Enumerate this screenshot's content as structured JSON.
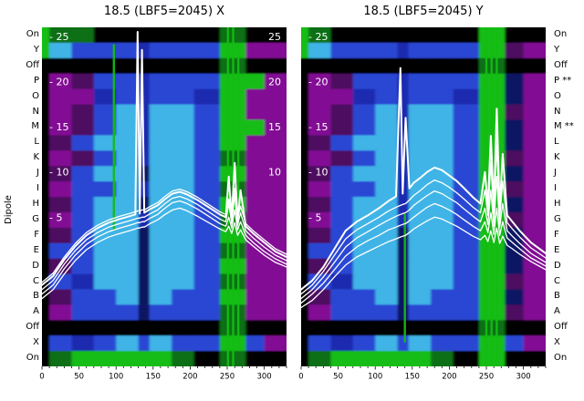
{
  "figure": {
    "left_title": "18.5 (LBF5=2045) X",
    "right_title": "18.5 (LBF5=2045) Y",
    "y_axis_label": "Dipole",
    "left_row_labels": [
      "On",
      "Y",
      "Off",
      "P",
      "O",
      "N",
      "M",
      "L",
      "K",
      "J",
      "I",
      "H",
      "G",
      "F",
      "E",
      "D",
      "C",
      "B",
      "A",
      "Off",
      "X",
      "On"
    ],
    "right_row_labels": [
      "On",
      "Y",
      "Off",
      "P **",
      "O",
      "N",
      "M **",
      "L",
      "K",
      "J",
      "I",
      "H",
      "G",
      "F",
      "E",
      "D",
      "C",
      "B",
      "A",
      "Off",
      "X",
      "On"
    ]
  },
  "chart_data": [
    {
      "type": "heatmap",
      "title": "18.5 (LBF5=2045) X",
      "x_range": [
        0,
        330
      ],
      "x_ticks": [
        0,
        50,
        100,
        150,
        200,
        250,
        300
      ],
      "rows": [
        "On",
        "Y",
        "Off",
        "P",
        "O",
        "N",
        "M",
        "L",
        "K",
        "J",
        "I",
        "H",
        "G",
        "F",
        "E",
        "D",
        "C",
        "B",
        "A",
        "Off",
        "X",
        "On"
      ],
      "colorscale_description": "black=off, purple=low, blue/cyan=mid, bright green=high",
      "palette": {
        "K": "#060606",
        "G": "#12bd12",
        "g": "#0a7014",
        "P": "#820c94",
        "p": "#4e0960",
        "B": "#2b46d4",
        "b": "#1c2bb0",
        "C": "#3fb4e6",
        "N": "#0e1464"
      },
      "col_edges": [
        0,
        10,
        40,
        70,
        100,
        130,
        145,
        175,
        205,
        240,
        275,
        300,
        330
      ],
      "grid": [
        "GggKKKKKKgKK",
        "GCBBBbBBBGPP",
        "KKKKKKKKKgKK",
        "KPpBBbBBBGGP",
        "KPPbBbBBbGPP",
        "KPpBCbCCBGPP",
        "KPpBCbCCBGGP",
        "KpBCCbCCBGPP",
        "KPpBCbCCBgPP",
        "KpBCCNCCBGPP",
        "KPBBCbCCBgPP",
        "KpBCCNCCBGPP",
        "KPBCCbCCBgPP",
        "KpBCCNCCBGPP",
        "KBBCCNCCBgPP",
        "KpBCCNCCBGPP",
        "KBbCCNCCBgPP",
        "KpBBCNCBBGPP",
        "KPBBBNBBBgPP",
        "KKKKKKKKKgKK",
        "KBbBCBCBBGBP",
        "KgGGGGGgKgKK"
      ],
      "green_lines": [
        [
          251,
          0.0,
          1.0
        ],
        [
          258,
          0.0,
          1.0
        ],
        [
          265,
          0.05,
          0.95
        ],
        [
          97,
          0.05,
          0.6
        ]
      ],
      "value_axis": {
        "vmin": -11.5,
        "vmax": 26,
        "ticks": [
          25,
          20,
          15,
          10,
          5
        ],
        "tick_labels_left": [
          "- 25",
          "- 20",
          "- 15",
          "- 10",
          "- 5"
        ],
        "tick_labels_right": [
          "25",
          "20",
          "15",
          "10"
        ]
      },
      "series": [
        {
          "name": "trace-1",
          "x": [
            0,
            15,
            30,
            45,
            60,
            75,
            90,
            105,
            118,
            126,
            129,
            132,
            135,
            138,
            146,
            156,
            166,
            176,
            186,
            196,
            210,
            225,
            240,
            248,
            252,
            256,
            260,
            264,
            268,
            275,
            285,
            300,
            315,
            330
          ],
          "y": [
            -2.5,
            -1.5,
            0.3,
            1.8,
            3.0,
            3.8,
            4.4,
            4.8,
            5.1,
            5.3,
            25.5,
            5.4,
            23.5,
            5.5,
            5.9,
            6.3,
            7.0,
            7.6,
            7.8,
            7.5,
            6.9,
            6.1,
            5.3,
            5.0,
            9.5,
            4.8,
            11.0,
            4.6,
            8.0,
            4.0,
            3.2,
            2.2,
            1.2,
            0.6
          ]
        },
        {
          "name": "trace-2",
          "x": [
            0,
            15,
            30,
            45,
            60,
            75,
            90,
            105,
            118,
            126,
            129,
            132,
            135,
            138,
            146,
            156,
            166,
            176,
            186,
            196,
            210,
            225,
            240,
            248,
            252,
            256,
            260,
            264,
            268,
            275,
            285,
            300,
            315,
            330
          ],
          "y": [
            -3.0,
            -2.0,
            -0.2,
            1.3,
            2.5,
            3.3,
            3.9,
            4.3,
            4.6,
            4.8,
            4.9,
            4.9,
            5.0,
            5.0,
            5.4,
            5.8,
            6.5,
            7.1,
            7.3,
            7.0,
            6.4,
            5.6,
            4.8,
            4.5,
            6.5,
            4.3,
            7.5,
            4.1,
            5.5,
            3.5,
            2.7,
            1.7,
            0.8,
            0.2
          ]
        },
        {
          "name": "trace-3",
          "x": [
            0,
            15,
            30,
            45,
            60,
            75,
            90,
            105,
            118,
            126,
            129,
            132,
            135,
            138,
            146,
            156,
            166,
            176,
            186,
            196,
            210,
            225,
            240,
            248,
            252,
            256,
            260,
            264,
            268,
            275,
            285,
            300,
            315,
            330
          ],
          "y": [
            -3.5,
            -2.5,
            -0.7,
            0.8,
            2.0,
            2.8,
            3.4,
            3.8,
            4.1,
            4.3,
            4.4,
            4.4,
            4.5,
            4.5,
            4.9,
            5.3,
            6.0,
            6.6,
            6.8,
            6.5,
            5.9,
            5.1,
            4.3,
            4.0,
            5.0,
            3.8,
            5.8,
            3.6,
            4.5,
            3.0,
            2.2,
            1.2,
            0.4,
            -0.2
          ]
        },
        {
          "name": "trace-4",
          "x": [
            0,
            15,
            30,
            45,
            60,
            75,
            90,
            105,
            118,
            126,
            129,
            132,
            135,
            138,
            146,
            156,
            166,
            176,
            186,
            196,
            210,
            225,
            240,
            248,
            252,
            256,
            260,
            264,
            268,
            275,
            285,
            300,
            315,
            330
          ],
          "y": [
            -4.0,
            -3.0,
            -1.3,
            0.2,
            1.4,
            2.2,
            2.8,
            3.2,
            3.5,
            3.7,
            3.8,
            3.8,
            3.9,
            3.9,
            4.3,
            4.7,
            5.3,
            5.8,
            6.0,
            5.7,
            5.1,
            4.4,
            3.7,
            3.4,
            4.0,
            3.2,
            4.4,
            3.0,
            3.6,
            2.5,
            1.8,
            0.8,
            0.0,
            -0.5
          ]
        },
        {
          "name": "trace-5",
          "x": [
            0,
            15,
            30,
            45,
            60,
            75,
            90,
            105,
            118,
            126,
            129,
            132,
            135,
            138,
            146,
            156,
            166,
            176,
            186,
            196,
            210,
            225,
            240,
            248,
            252,
            256,
            260,
            264,
            268,
            275,
            285,
            300,
            315,
            330
          ],
          "y": [
            -2.2,
            -1.2,
            0.6,
            2.1,
            3.3,
            4.1,
            4.7,
            5.1,
            5.4,
            5.6,
            5.7,
            5.7,
            5.8,
            5.8,
            6.2,
            6.6,
            7.3,
            7.9,
            8.1,
            7.8,
            7.2,
            6.4,
            5.6,
            5.3,
            7.0,
            5.1,
            8.2,
            4.9,
            6.2,
            4.3,
            3.5,
            2.5,
            1.5,
            0.9
          ]
        }
      ]
    },
    {
      "type": "heatmap",
      "title": "18.5 (LBF5=2045) Y",
      "x_range": [
        0,
        330
      ],
      "x_ticks": [
        0,
        50,
        100,
        150,
        200,
        250,
        300
      ],
      "rows": [
        "On",
        "Y",
        "Off",
        "P **",
        "O",
        "N",
        "M **",
        "L",
        "K",
        "J",
        "I",
        "H",
        "G",
        "F",
        "E",
        "D",
        "C",
        "B",
        "A",
        "Off",
        "X",
        "On"
      ],
      "colorscale_description": "black=off, purple=low, blue/cyan=mid, bright green=high",
      "palette": {
        "K": "#060606",
        "G": "#12bd12",
        "g": "#0a7014",
        "P": "#820c94",
        "p": "#4e0960",
        "B": "#2b46d4",
        "b": "#1c2bb0",
        "C": "#3fb4e6",
        "N": "#0e1464"
      },
      "col_edges": [
        0,
        10,
        40,
        70,
        100,
        130,
        145,
        175,
        205,
        240,
        275,
        300,
        330
      ],
      "grid": [
        "GgKKKKKKKGKK",
        "GCBBBbBBBGpP",
        "KKKKKKKKKgKK",
        "KPpBBbBBBGNP",
        "KPPbBbBBbGNP",
        "KPpBCbCCBGpP",
        "KPpBCbCCBGNP",
        "KpBCCbCCBGNP",
        "KPpBCbCCBGpP",
        "KpBCCbCCBGNP",
        "KPBBCbCCBGpP",
        "KpBCCbCCBGNP",
        "KPBCCbCCBGpP",
        "KpBCCNCCBGNP",
        "KBBCCNCCBGNP",
        "KpBCCNCCBGNP",
        "KBbCCNCCBGpP",
        "KpBBCNCBBGNP",
        "KPBBBNBBBGpP",
        "KKKKKKKKKgKK",
        "KBbBCBCBBGBP",
        "KgGGGGGgKGKK"
      ],
      "green_lines": [
        [
          250,
          0.0,
          1.0
        ],
        [
          257,
          0.0,
          1.0
        ],
        [
          264,
          0.0,
          1.0
        ],
        [
          140,
          0.55,
          0.93
        ]
      ],
      "value_axis": {
        "vmin": -11.5,
        "vmax": 26,
        "ticks": [
          25,
          20,
          15,
          10,
          5
        ],
        "tick_labels_left": [
          "- 25",
          "- 20",
          "- 15",
          "- 10",
          "- 5"
        ]
      },
      "series": [
        {
          "name": "trace-1",
          "x": [
            0,
            15,
            30,
            45,
            60,
            75,
            90,
            105,
            118,
            128,
            134,
            137,
            141,
            146,
            152,
            160,
            170,
            180,
            190,
            200,
            210,
            220,
            232,
            242,
            248,
            252,
            256,
            260,
            264,
            268,
            272,
            278,
            285,
            295,
            310,
            330
          ],
          "y": [
            -3.0,
            -2.0,
            -0.5,
            1.5,
            3.5,
            4.5,
            5.2,
            6.0,
            6.8,
            7.3,
            21.5,
            7.6,
            16.0,
            8.2,
            8.8,
            9.3,
            10.0,
            10.5,
            10.2,
            9.6,
            9.0,
            8.2,
            7.2,
            6.5,
            10.0,
            6.2,
            14.0,
            6.0,
            17.0,
            5.8,
            12.0,
            5.2,
            4.5,
            3.5,
            2.2,
            1.0
          ]
        },
        {
          "name": "trace-2",
          "x": [
            0,
            15,
            30,
            45,
            60,
            75,
            90,
            105,
            118,
            128,
            134,
            137,
            141,
            146,
            152,
            160,
            170,
            180,
            190,
            200,
            210,
            220,
            232,
            242,
            248,
            252,
            256,
            260,
            264,
            268,
            272,
            278,
            285,
            295,
            310,
            330
          ],
          "y": [
            -3.5,
            -2.5,
            -1.0,
            0.8,
            2.6,
            3.6,
            4.3,
            5.0,
            5.7,
            6.1,
            6.3,
            6.4,
            6.5,
            6.9,
            7.4,
            7.9,
            8.6,
            9.1,
            8.8,
            8.3,
            7.7,
            7.0,
            6.1,
            5.5,
            8.0,
            5.2,
            11.0,
            5.0,
            13.0,
            4.8,
            9.0,
            4.4,
            3.7,
            2.8,
            1.6,
            0.5
          ]
        },
        {
          "name": "trace-3",
          "x": [
            0,
            15,
            30,
            45,
            60,
            75,
            90,
            105,
            118,
            128,
            134,
            137,
            141,
            146,
            152,
            160,
            170,
            180,
            190,
            200,
            210,
            220,
            232,
            242,
            248,
            252,
            256,
            260,
            264,
            268,
            272,
            278,
            285,
            295,
            310,
            330
          ],
          "y": [
            -4.0,
            -3.0,
            -1.6,
            0.0,
            1.7,
            2.7,
            3.4,
            4.1,
            4.7,
            5.1,
            5.3,
            5.4,
            5.5,
            5.8,
            6.3,
            6.8,
            7.4,
            7.9,
            7.6,
            7.1,
            6.6,
            5.9,
            5.1,
            4.5,
            6.0,
            4.2,
            8.0,
            4.0,
            9.5,
            3.9,
            6.5,
            3.5,
            2.9,
            2.1,
            1.0,
            0.0
          ]
        },
        {
          "name": "trace-4",
          "x": [
            0,
            15,
            30,
            45,
            60,
            75,
            90,
            105,
            118,
            128,
            134,
            137,
            141,
            146,
            152,
            160,
            170,
            180,
            190,
            200,
            210,
            220,
            232,
            242,
            248,
            252,
            256,
            260,
            264,
            268,
            272,
            278,
            285,
            295,
            310,
            330
          ],
          "y": [
            -4.5,
            -3.5,
            -2.3,
            -0.8,
            0.7,
            1.7,
            2.4,
            3.0,
            3.6,
            3.9,
            4.1,
            4.2,
            4.3,
            4.6,
            5.0,
            5.5,
            6.1,
            6.5,
            6.2,
            5.8,
            5.3,
            4.7,
            4.0,
            3.5,
            4.5,
            3.3,
            5.5,
            3.1,
            6.0,
            3.0,
            4.5,
            2.7,
            2.2,
            1.5,
            0.5,
            -0.4
          ]
        },
        {
          "name": "trace-5",
          "x": [
            0,
            15,
            30,
            45,
            60,
            75,
            90,
            105,
            118,
            128,
            134,
            137,
            141,
            146,
            152,
            160,
            170,
            180,
            190,
            200,
            210,
            220,
            232,
            242,
            248,
            252,
            256,
            260,
            264,
            268,
            272,
            278,
            285,
            295,
            310,
            330
          ],
          "y": [
            -5.0,
            -4.2,
            -3.0,
            -1.6,
            -0.3,
            0.6,
            1.2,
            1.8,
            2.3,
            2.6,
            2.8,
            2.9,
            3.0,
            3.3,
            3.7,
            4.1,
            4.6,
            5.0,
            4.8,
            4.4,
            4.0,
            3.5,
            2.9,
            2.5,
            3.0,
            2.3,
            3.5,
            2.2,
            3.8,
            2.1,
            2.9,
            1.9,
            1.5,
            0.9,
            0.1,
            -0.8
          ]
        }
      ]
    }
  ]
}
